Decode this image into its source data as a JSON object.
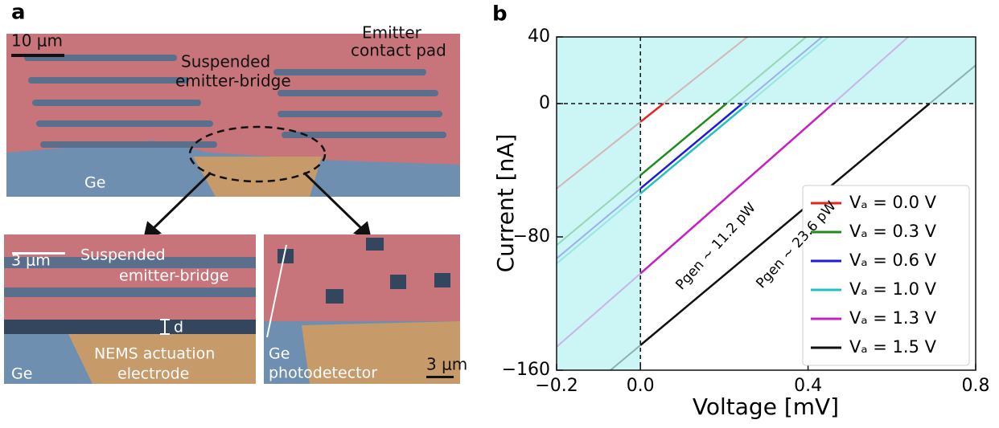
{
  "panel_labels": [
    "a",
    "b"
  ],
  "panel_a": {
    "top": {
      "scale_bar": "10 μm",
      "bridge_label": [
        "Suspended",
        "emitter-bridge"
      ],
      "pad_label": [
        "Emitter",
        "contact pad"
      ],
      "ge_label": "Ge"
    },
    "bottom_left": {
      "scale_bar": "3 μm",
      "bridge_label": [
        "Suspended",
        "emitter-bridge"
      ],
      "gap_label": "d",
      "electrode_label": [
        "NEMS actuation",
        "electrode"
      ],
      "ge_label": "Ge"
    },
    "bottom_right": {
      "detector_label": [
        "Ge",
        "photodetector"
      ],
      "scale_bar": "3 μm"
    }
  },
  "chart_data": {
    "type": "line",
    "xlabel": "Voltage [mV]",
    "ylabel": "Current [nA]",
    "xlim": [
      -0.2,
      0.8
    ],
    "xticks": [
      {
        "value": -0.2,
        "label": "−0.2"
      },
      {
        "value": 0,
        "label": "0.0"
      },
      0.4,
      0.8
    ],
    "ylim": [
      -160,
      40
    ],
    "yticks": [
      40,
      {
        "value": 0,
        "label": "0"
      },
      {
        "value": -80,
        "label": "−80"
      },
      {
        "value": -160,
        "label": "−160"
      }
    ],
    "legend": "lower right",
    "shade_color": "#ccf5f5",
    "annotations": [
      "Pgen ~ 11.2 pW",
      "Pgen ~ 23.6 pW"
    ],
    "series": [
      {
        "name": "Vₐ = 0.0 V",
        "color": "#e8231f",
        "x": [
          -0.2,
          0,
          0.055,
          0.8
        ],
        "values": [
          -51,
          -11,
          0,
          149
        ]
      },
      {
        "name": "Vₐ = 0.3 V",
        "color": "#1e8c1e",
        "x": [
          -0.2,
          0,
          0.205,
          0.8
        ],
        "values": [
          -85,
          -43,
          0,
          125
        ]
      },
      {
        "name": "Vₐ = 0.6 V",
        "color": "#1a1ae0",
        "x": [
          -0.2,
          0,
          0.243,
          0.8
        ],
        "values": [
          -93,
          -51,
          0,
          117
        ]
      },
      {
        "name": "Vₐ = 1.0 V",
        "color": "#22c0c0",
        "x": [
          -0.2,
          0,
          0.257,
          0.8
        ],
        "values": [
          -96,
          -54,
          0,
          114
        ]
      },
      {
        "name": "Vₐ = 1.3 V",
        "color": "#c81ec8",
        "x": [
          -0.2,
          0,
          0.46,
          0.8
        ],
        "values": [
          -146,
          -102,
          0,
          76
        ]
      },
      {
        "name": "Vₐ = 1.5 V",
        "color": "#111111",
        "x": [
          -0.2,
          0,
          0.69,
          0.8
        ],
        "values": [
          -187,
          -145,
          0,
          23
        ]
      }
    ]
  }
}
